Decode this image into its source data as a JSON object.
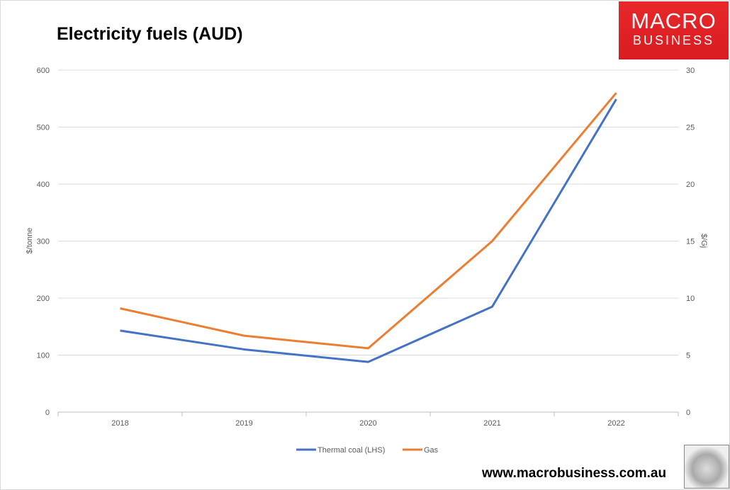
{
  "logo": {
    "line1": "MACRO",
    "line2": "BUSINESS"
  },
  "footer": {
    "url": "www.macrobusiness.com.au"
  },
  "chart_data": {
    "type": "line",
    "title": "Electricity fuels (AUD)",
    "categories": [
      "2018",
      "2019",
      "2020",
      "2021",
      "2022"
    ],
    "series": [
      {
        "name": "Thermal coal (LHS)",
        "axis": "left",
        "color": "#4472c4",
        "values": [
          143,
          110,
          88,
          185,
          549
        ]
      },
      {
        "name": "Gas",
        "axis": "right",
        "color": "#ed7d31",
        "values": [
          9.1,
          6.7,
          5.6,
          15.0,
          28.0
        ]
      }
    ],
    "ylabel": "$/tonne",
    "ylim": [
      0,
      600
    ],
    "yticks": [
      "0",
      "100",
      "200",
      "300",
      "400",
      "500",
      "600"
    ],
    "y2label": "$/Gj",
    "y2lim": [
      0,
      30
    ],
    "y2ticks": [
      "0",
      "5",
      "10",
      "15",
      "20",
      "25",
      "30"
    ],
    "grid": true,
    "legend": "bottom"
  }
}
